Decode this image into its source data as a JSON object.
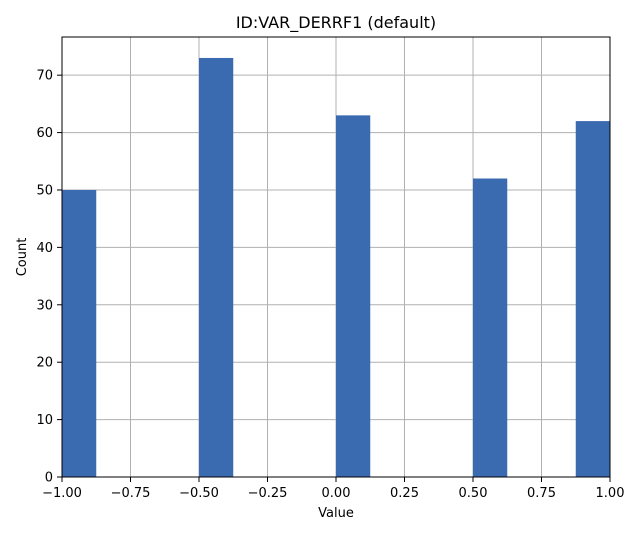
{
  "chart_data": {
    "type": "bar",
    "title": "ID:VAR_DERRF1 (default)",
    "xlabel": "Value",
    "ylabel": "Count",
    "bin_edges_note": "",
    "x": [
      -1.0,
      -0.5,
      0.0,
      0.5,
      1.0
    ],
    "bins": [
      {
        "start": -1.0,
        "end": -0.875,
        "count": 50
      },
      {
        "start": -0.5,
        "end": -0.375,
        "count": 73
      },
      {
        "start": 0.0,
        "end": 0.125,
        "count": 63
      },
      {
        "start": 0.5,
        "end": 0.625,
        "count": 52
      },
      {
        "start": 0.875,
        "end": 1.0,
        "count": 62
      }
    ],
    "xlim": [
      -1.0,
      1.0
    ],
    "ylim": [
      0,
      76.65
    ],
    "x_ticks": [
      -1.0,
      -0.75,
      -0.5,
      -0.25,
      0.0,
      0.25,
      0.5,
      0.75,
      1.0
    ],
    "x_tick_labels": [
      "−1.00",
      "−0.75",
      "−0.50",
      "−0.25",
      "0.00",
      "0.25",
      "0.50",
      "0.75",
      "1.00"
    ],
    "y_ticks": [
      0,
      10,
      20,
      30,
      40,
      50,
      60,
      70
    ],
    "y_tick_labels": [
      "0",
      "10",
      "20",
      "30",
      "40",
      "50",
      "60",
      "70"
    ],
    "grid": true,
    "bar_color": "#3a6ab0",
    "grid_color": "#b0b0b0"
  }
}
